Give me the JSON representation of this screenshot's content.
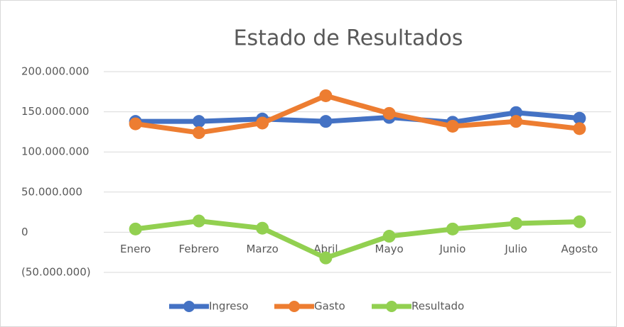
{
  "chart_data": {
    "type": "line",
    "title": "Estado de Resultados",
    "categories": [
      "Enero",
      "Febrero",
      "Marzo",
      "Abril",
      "Mayo",
      "Junio",
      "Julio",
      "Agosto"
    ],
    "series": [
      {
        "name": "Ingreso",
        "color": "#4472c4",
        "values": [
          138000000,
          138000000,
          141000000,
          138000000,
          143000000,
          137000000,
          149000000,
          142000000
        ]
      },
      {
        "name": "Gasto",
        "color": "#ed7d31",
        "values": [
          135000000,
          124000000,
          136000000,
          170000000,
          148000000,
          132000000,
          138000000,
          129000000
        ]
      },
      {
        "name": "Resultado",
        "color": "#92d050",
        "values": [
          4000000,
          14000000,
          5000000,
          -32000000,
          -5000000,
          4000000,
          11000000,
          13000000
        ]
      }
    ],
    "ylim": [
      -50000000,
      200000000
    ],
    "yticks": [
      {
        "value": -50000000,
        "label": "(50.000.000)"
      },
      0,
      {
        "value": 50000000,
        "label": "50.000.000"
      },
      {
        "value": 100000000,
        "label": "100.000.000"
      },
      {
        "value": 150000000,
        "label": "150.000.000"
      },
      {
        "value": 200000000,
        "label": "200.000.000"
      }
    ],
    "grid": true,
    "legend": "bottom"
  }
}
